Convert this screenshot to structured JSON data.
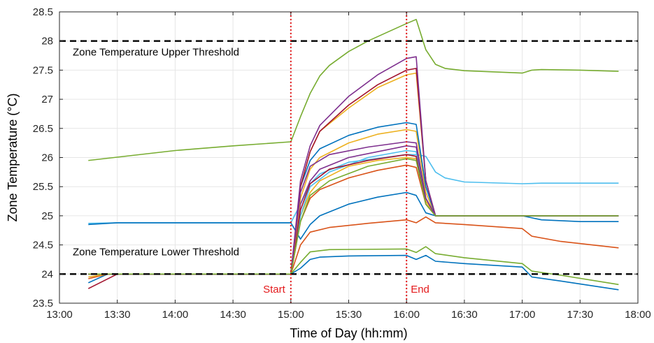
{
  "chart_data": {
    "type": "line",
    "title": "",
    "xlabel": "Time of Day (hh:mm)",
    "ylabel": "Zone Temperature (°C)",
    "xlim": [
      "13:00",
      "18:00"
    ],
    "ylim": [
      23.5,
      28.5
    ],
    "x_ticks": [
      "13:00",
      "13:30",
      "14:00",
      "14:30",
      "15:00",
      "15:30",
      "16:00",
      "16:30",
      "17:00",
      "17:30",
      "18:00"
    ],
    "y_ticks": [
      "23.5",
      "24",
      "24.5",
      "25",
      "25.5",
      "26",
      "26.5",
      "27",
      "27.5",
      "28",
      "28.5"
    ],
    "grid": true,
    "thresholds": [
      {
        "label": "Zone Temperature Upper Threshold",
        "y": 28,
        "color": "#000000"
      },
      {
        "label": "Zone Temperature Lower Threshold",
        "y": 24,
        "color": "#000000"
      }
    ],
    "event_markers": [
      {
        "label": "Start",
        "x": "15:00",
        "color": "#e41a1c"
      },
      {
        "label": "End",
        "x": "16:00",
        "color": "#e41a1c"
      }
    ],
    "series": [
      {
        "color": "#77ac30",
        "points": [
          [
            "13:15",
            25.95
          ],
          [
            "14:00",
            26.12
          ],
          [
            "14:30",
            26.2
          ],
          [
            "15:00",
            26.27
          ],
          [
            "15:05",
            26.7
          ],
          [
            "15:10",
            27.1
          ],
          [
            "15:15",
            27.4
          ],
          [
            "15:20",
            27.58
          ],
          [
            "15:30",
            27.82
          ],
          [
            "15:40",
            28.0
          ],
          [
            "15:50",
            28.15
          ],
          [
            "16:00",
            28.3
          ],
          [
            "16:05",
            28.37
          ],
          [
            "16:10",
            27.85
          ],
          [
            "16:15",
            27.6
          ],
          [
            "16:20",
            27.53
          ],
          [
            "16:30",
            27.49
          ],
          [
            "17:00",
            27.45
          ],
          [
            "17:05",
            27.5
          ],
          [
            "17:10",
            27.51
          ],
          [
            "17:30",
            27.5
          ],
          [
            "17:50",
            27.48
          ]
        ]
      },
      {
        "color": "#4dbeee",
        "points": [
          [
            "13:15",
            24.87
          ],
          [
            "13:30",
            24.88
          ],
          [
            "14:00",
            24.88
          ],
          [
            "14:30",
            24.88
          ],
          [
            "15:00",
            24.88
          ],
          [
            "15:05",
            25.2
          ],
          [
            "15:10",
            25.55
          ],
          [
            "15:15",
            25.72
          ],
          [
            "15:30",
            25.92
          ],
          [
            "16:00",
            26.05
          ],
          [
            "16:05",
            26.05
          ],
          [
            "16:10",
            26.02
          ],
          [
            "16:15",
            25.75
          ],
          [
            "16:20",
            25.65
          ],
          [
            "16:30",
            25.58
          ],
          [
            "17:00",
            25.55
          ],
          [
            "17:10",
            25.56
          ],
          [
            "17:50",
            25.56
          ]
        ]
      },
      {
        "color": "#0072bd",
        "points": [
          [
            "13:15",
            23.85
          ],
          [
            "13:25",
            24.0
          ],
          [
            "14:00",
            24.0
          ],
          [
            "15:00",
            24.0
          ],
          [
            "15:05",
            24.1
          ],
          [
            "15:10",
            24.25
          ],
          [
            "15:15",
            24.29
          ],
          [
            "15:30",
            24.31
          ],
          [
            "16:00",
            24.32
          ],
          [
            "16:05",
            24.25
          ],
          [
            "16:10",
            24.32
          ],
          [
            "16:15",
            24.22
          ],
          [
            "16:30",
            24.18
          ],
          [
            "17:00",
            24.12
          ],
          [
            "17:05",
            23.95
          ],
          [
            "17:20",
            23.88
          ],
          [
            "17:50",
            23.73
          ]
        ]
      },
      {
        "color": "#77ac30",
        "points": [
          [
            "13:15",
            24.0
          ],
          [
            "15:00",
            24.0
          ],
          [
            "15:05",
            24.2
          ],
          [
            "15:10",
            24.38
          ],
          [
            "15:20",
            24.42
          ],
          [
            "16:00",
            24.43
          ],
          [
            "16:05",
            24.37
          ],
          [
            "16:10",
            24.47
          ],
          [
            "16:15",
            24.35
          ],
          [
            "16:30",
            24.28
          ],
          [
            "17:00",
            24.18
          ],
          [
            "17:05",
            24.05
          ],
          [
            "17:20",
            23.98
          ],
          [
            "17:50",
            23.82
          ]
        ]
      },
      {
        "color": "#d95319",
        "points": [
          [
            "13:15",
            23.92
          ],
          [
            "13:25",
            24.0
          ],
          [
            "15:00",
            24.0
          ],
          [
            "15:05",
            24.5
          ],
          [
            "15:10",
            24.72
          ],
          [
            "15:20",
            24.8
          ],
          [
            "15:40",
            24.87
          ],
          [
            "16:00",
            24.93
          ],
          [
            "16:05",
            24.88
          ],
          [
            "16:10",
            24.98
          ],
          [
            "16:15",
            24.88
          ],
          [
            "16:30",
            24.85
          ],
          [
            "17:00",
            24.78
          ],
          [
            "17:05",
            24.65
          ],
          [
            "17:20",
            24.56
          ],
          [
            "17:50",
            24.45
          ]
        ]
      },
      {
        "color": "#0072bd",
        "points": [
          [
            "13:15",
            24.85
          ],
          [
            "13:30",
            24.88
          ],
          [
            "14:00",
            24.88
          ],
          [
            "14:30",
            24.88
          ],
          [
            "15:00",
            24.88
          ],
          [
            "15:05",
            24.6
          ],
          [
            "15:10",
            24.85
          ],
          [
            "15:15",
            25.0
          ],
          [
            "15:30",
            25.2
          ],
          [
            "15:45",
            25.32
          ],
          [
            "16:00",
            25.4
          ],
          [
            "16:05",
            25.35
          ],
          [
            "16:10",
            25.05
          ],
          [
            "16:15",
            25.0
          ],
          [
            "16:30",
            25.0
          ],
          [
            "17:00",
            25.0
          ],
          [
            "17:10",
            24.93
          ],
          [
            "17:30",
            24.9
          ],
          [
            "17:50",
            24.9
          ]
        ]
      },
      {
        "color": "#d95319",
        "points": [
          [
            "13:15",
            24.0
          ],
          [
            "15:00",
            24.0
          ],
          [
            "15:05",
            24.9
          ],
          [
            "15:10",
            25.3
          ],
          [
            "15:15",
            25.45
          ],
          [
            "15:30",
            25.65
          ],
          [
            "15:45",
            25.78
          ],
          [
            "16:00",
            25.87
          ],
          [
            "16:05",
            25.83
          ],
          [
            "16:10",
            25.2
          ],
          [
            "16:15",
            25.0
          ],
          [
            "17:50",
            25.0
          ]
        ]
      },
      {
        "color": "#edb120",
        "points": [
          [
            "13:15",
            23.95
          ],
          [
            "13:25",
            24.0
          ],
          [
            "15:00",
            24.0
          ],
          [
            "15:05",
            25.0
          ],
          [
            "15:10",
            25.4
          ],
          [
            "15:15",
            25.6
          ],
          [
            "15:30",
            25.85
          ],
          [
            "15:45",
            25.95
          ],
          [
            "16:00",
            26.0
          ],
          [
            "16:05",
            25.98
          ],
          [
            "16:10",
            25.25
          ],
          [
            "16:15",
            25.0
          ],
          [
            "17:50",
            25.0
          ]
        ]
      },
      {
        "color": "#4dbeee",
        "points": [
          [
            "13:15",
            24.0
          ],
          [
            "15:00",
            24.0
          ],
          [
            "15:05",
            25.0
          ],
          [
            "15:10",
            25.5
          ],
          [
            "15:20",
            25.75
          ],
          [
            "15:40",
            26.0
          ],
          [
            "16:00",
            26.12
          ],
          [
            "16:05",
            26.1
          ],
          [
            "16:10",
            25.3
          ],
          [
            "16:15",
            25.0
          ],
          [
            "17:50",
            25.0
          ]
        ]
      },
      {
        "color": "#7e2f8e",
        "points": [
          [
            "13:15",
            24.0
          ],
          [
            "15:00",
            24.0
          ],
          [
            "15:05",
            25.2
          ],
          [
            "15:10",
            25.6
          ],
          [
            "15:15",
            25.8
          ],
          [
            "15:30",
            26.0
          ],
          [
            "16:00",
            26.2
          ],
          [
            "16:05",
            26.18
          ],
          [
            "16:10",
            25.3
          ],
          [
            "16:15",
            25.0
          ],
          [
            "17:50",
            25.0
          ]
        ]
      },
      {
        "color": "#a2142f",
        "points": [
          [
            "13:15",
            23.75
          ],
          [
            "13:30",
            24.0
          ],
          [
            "15:00",
            24.0
          ],
          [
            "15:05",
            25.1
          ],
          [
            "15:10",
            25.55
          ],
          [
            "15:20",
            25.8
          ],
          [
            "15:40",
            25.95
          ],
          [
            "16:00",
            26.05
          ],
          [
            "16:05",
            26.02
          ],
          [
            "16:10",
            25.2
          ],
          [
            "16:15",
            25.0
          ],
          [
            "17:50",
            25.0
          ]
        ]
      },
      {
        "color": "#edb120",
        "points": [
          [
            "13:15",
            24.0
          ],
          [
            "15:00",
            24.0
          ],
          [
            "15:05",
            25.3
          ],
          [
            "15:10",
            25.8
          ],
          [
            "15:15",
            26.0
          ],
          [
            "15:30",
            26.25
          ],
          [
            "15:45",
            26.4
          ],
          [
            "16:00",
            26.48
          ],
          [
            "16:05",
            26.45
          ],
          [
            "16:10",
            25.4
          ],
          [
            "16:15",
            25.0
          ],
          [
            "17:50",
            25.0
          ]
        ]
      },
      {
        "color": "#0072bd",
        "points": [
          [
            "13:15",
            24.0
          ],
          [
            "15:00",
            24.0
          ],
          [
            "15:05",
            25.5
          ],
          [
            "15:10",
            25.95
          ],
          [
            "15:15",
            26.15
          ],
          [
            "15:30",
            26.38
          ],
          [
            "15:45",
            26.52
          ],
          [
            "16:00",
            26.6
          ],
          [
            "16:05",
            26.57
          ],
          [
            "16:10",
            25.5
          ],
          [
            "16:15",
            25.0
          ],
          [
            "17:50",
            25.0
          ]
        ]
      },
      {
        "color": "#edb120",
        "points": [
          [
            "13:15",
            24.0
          ],
          [
            "15:00",
            24.0
          ],
          [
            "15:05",
            25.5
          ],
          [
            "15:10",
            26.1
          ],
          [
            "15:15",
            26.45
          ],
          [
            "15:30",
            26.85
          ],
          [
            "15:45",
            27.2
          ],
          [
            "16:00",
            27.42
          ],
          [
            "16:05",
            27.45
          ],
          [
            "16:10",
            25.6
          ],
          [
            "16:15",
            25.0
          ],
          [
            "17:50",
            25.0
          ]
        ]
      },
      {
        "color": "#a2142f",
        "points": [
          [
            "13:15",
            24.0
          ],
          [
            "15:00",
            24.0
          ],
          [
            "15:05",
            25.5
          ],
          [
            "15:10",
            26.1
          ],
          [
            "15:15",
            26.45
          ],
          [
            "15:30",
            26.9
          ],
          [
            "15:45",
            27.25
          ],
          [
            "16:00",
            27.5
          ],
          [
            "16:05",
            27.53
          ],
          [
            "16:10",
            25.6
          ],
          [
            "16:15",
            25.0
          ],
          [
            "17:50",
            25.0
          ]
        ]
      },
      {
        "color": "#7e2f8e",
        "points": [
          [
            "13:15",
            24.0
          ],
          [
            "15:00",
            24.0
          ],
          [
            "15:05",
            25.6
          ],
          [
            "15:10",
            26.2
          ],
          [
            "15:15",
            26.55
          ],
          [
            "15:30",
            27.05
          ],
          [
            "15:45",
            27.42
          ],
          [
            "16:00",
            27.7
          ],
          [
            "16:05",
            27.73
          ],
          [
            "16:10",
            25.6
          ],
          [
            "16:15",
            25.0
          ],
          [
            "17:50",
            25.0
          ]
        ]
      },
      {
        "color": "#7e2f8e",
        "points": [
          [
            "13:15",
            24.0
          ],
          [
            "15:00",
            24.0
          ],
          [
            "15:05",
            25.4
          ],
          [
            "15:10",
            25.85
          ],
          [
            "15:20",
            26.05
          ],
          [
            "15:40",
            26.18
          ],
          [
            "16:00",
            26.27
          ],
          [
            "16:05",
            26.25
          ],
          [
            "16:10",
            25.3
          ],
          [
            "16:15",
            25.0
          ],
          [
            "17:50",
            25.0
          ]
        ]
      },
      {
        "color": "#77ac30",
        "points": [
          [
            "13:15",
            24.0
          ],
          [
            "15:00",
            24.0
          ],
          [
            "15:05",
            24.9
          ],
          [
            "15:10",
            25.35
          ],
          [
            "15:20",
            25.6
          ],
          [
            "15:40",
            25.85
          ],
          [
            "16:00",
            25.98
          ],
          [
            "16:05",
            25.95
          ],
          [
            "16:10",
            25.2
          ],
          [
            "16:15",
            25.0
          ],
          [
            "17:50",
            25.0
          ]
        ]
      }
    ]
  }
}
